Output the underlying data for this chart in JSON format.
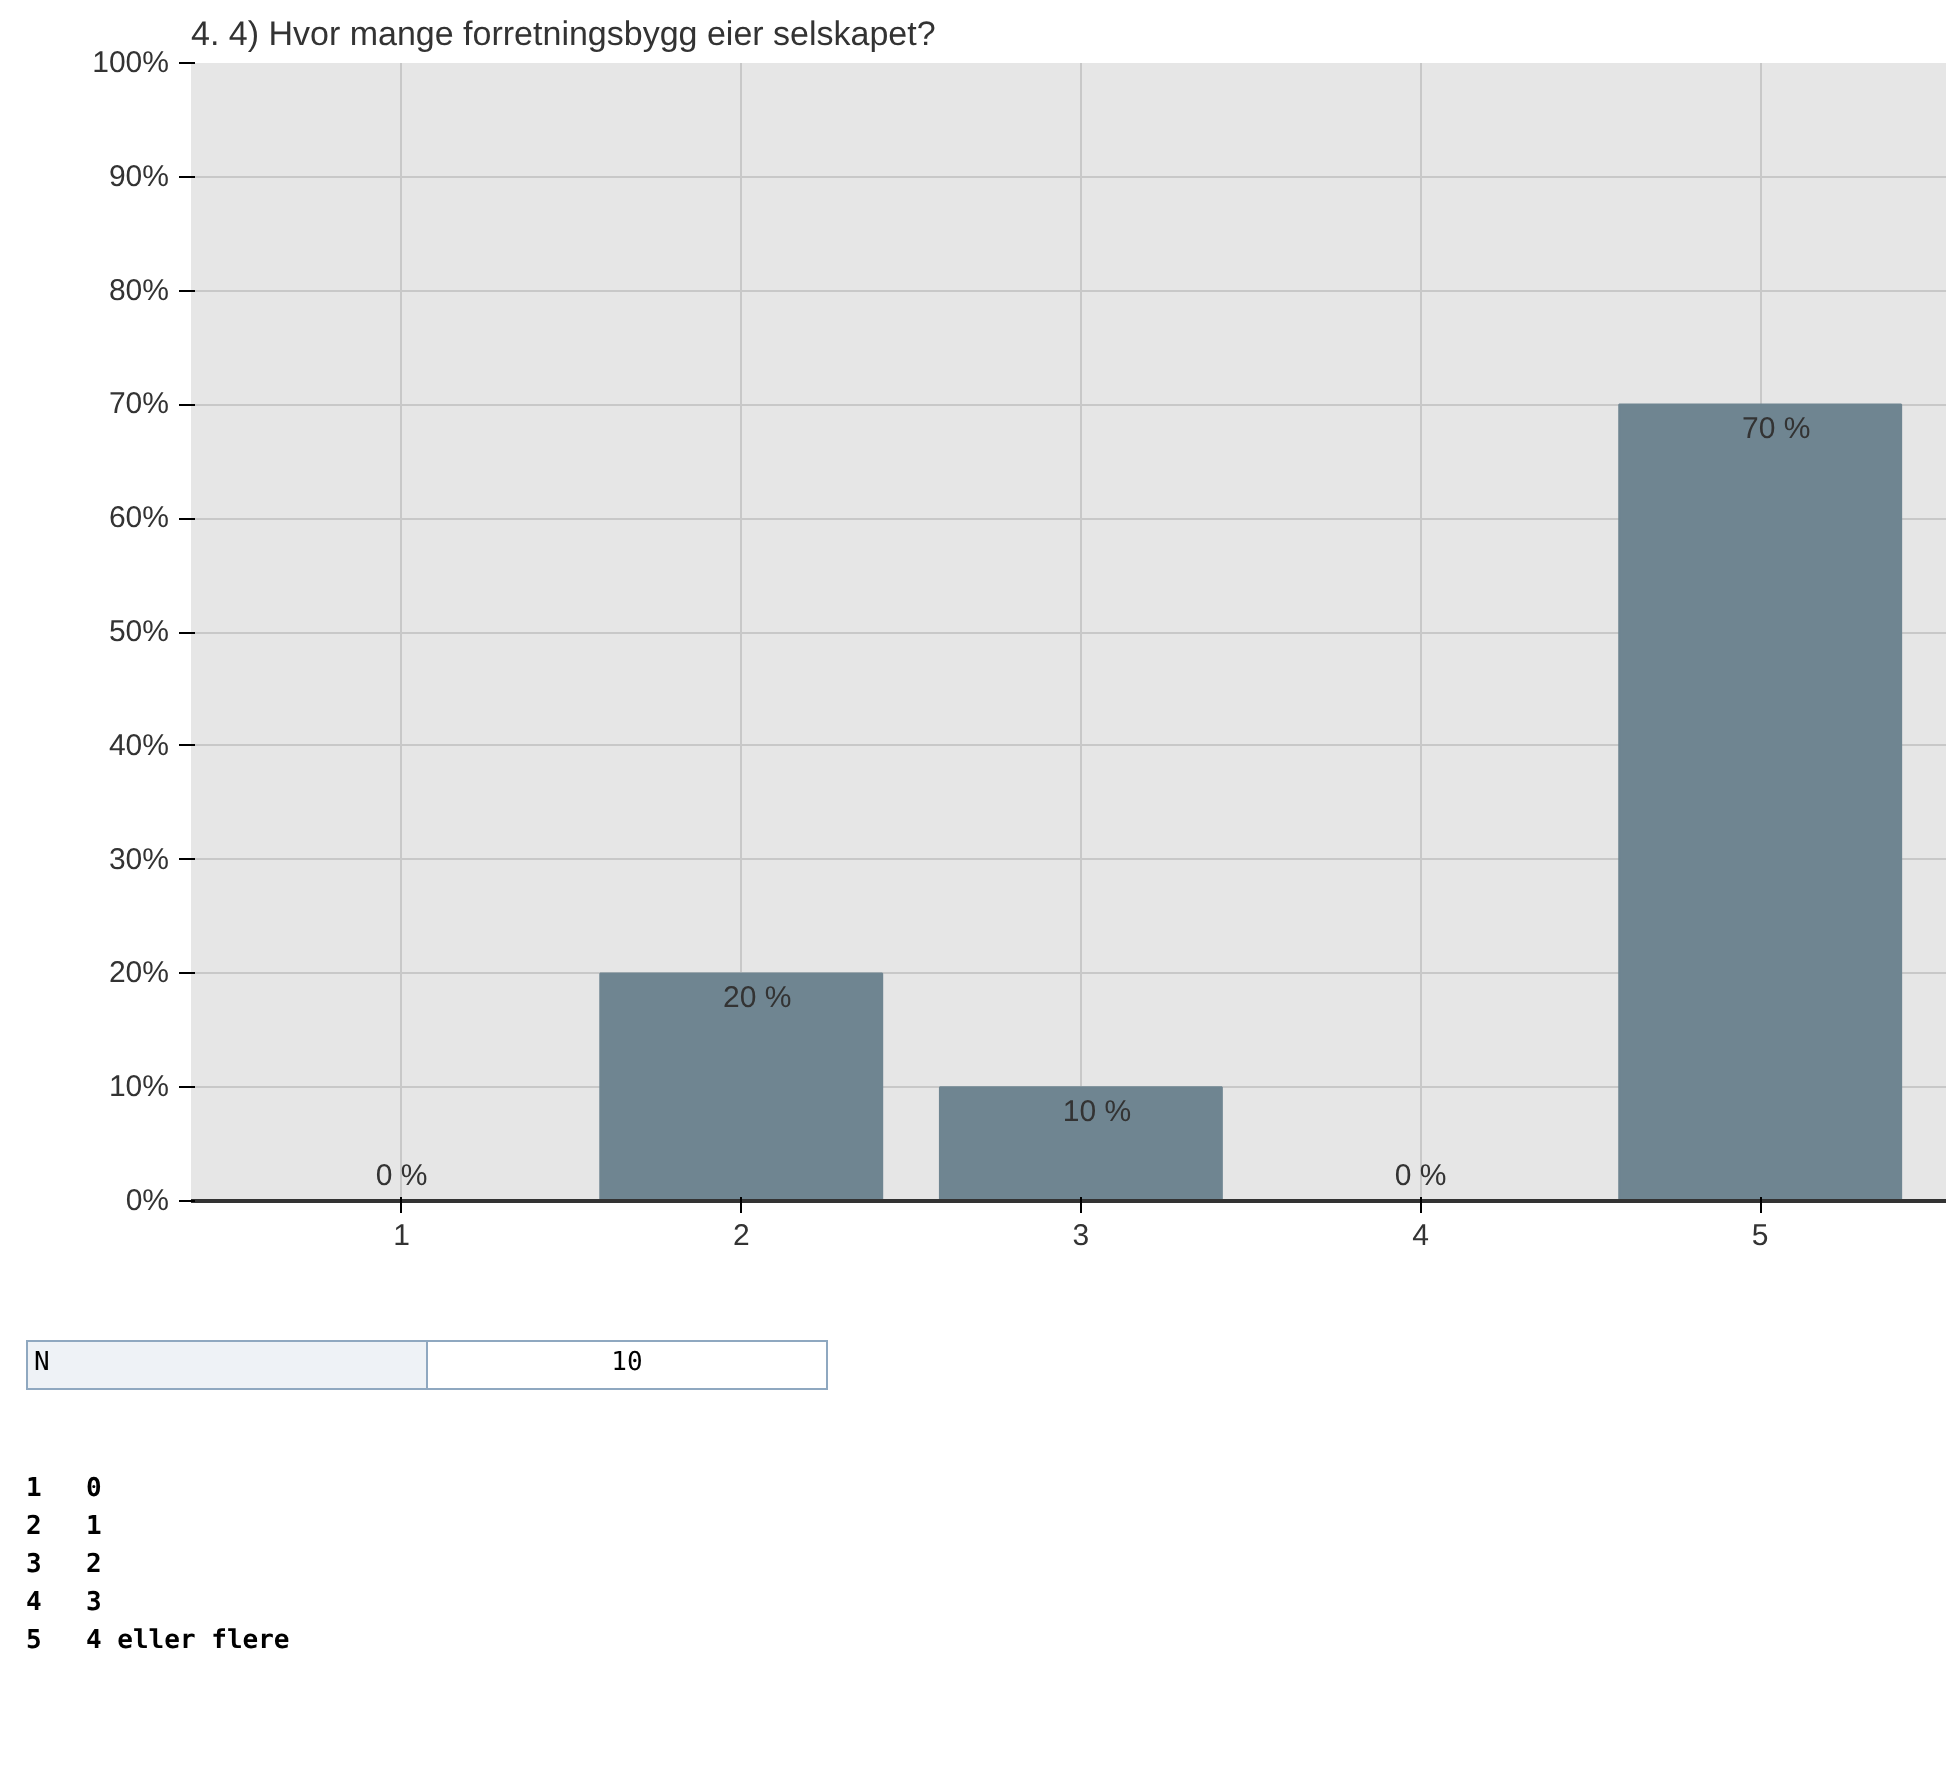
{
  "chart_data": {
    "type": "bar",
    "title": "4. 4) Hvor mange forretningsbygg eier selskapet?",
    "categories": [
      "1",
      "2",
      "3",
      "4",
      "5"
    ],
    "values": [
      0,
      20,
      10,
      0,
      70
    ],
    "value_labels": [
      "0 %",
      "20 %",
      "10 %",
      "0 %",
      "70 %"
    ],
    "color": "#6f8591",
    "ylim": [
      0,
      100
    ],
    "yticks": [
      {
        "value": 0,
        "label": "0%"
      },
      {
        "value": 10,
        "label": "10%"
      },
      {
        "value": 20,
        "label": "20%"
      },
      {
        "value": 30,
        "label": "30%"
      },
      {
        "value": 40,
        "label": "40%"
      },
      {
        "value": 50,
        "label": "50%"
      },
      {
        "value": 60,
        "label": "60%"
      },
      {
        "value": 70,
        "label": "70%"
      },
      {
        "value": 80,
        "label": "80%"
      },
      {
        "value": 90,
        "label": "90%"
      },
      {
        "value": 100,
        "label": "100%"
      }
    ],
    "grid": true,
    "annotations": [
      "N",
      "10",
      "1",
      "0",
      "2",
      "1",
      "3",
      "2",
      "4",
      "3",
      "5",
      "4 eller flere"
    ]
  }
}
